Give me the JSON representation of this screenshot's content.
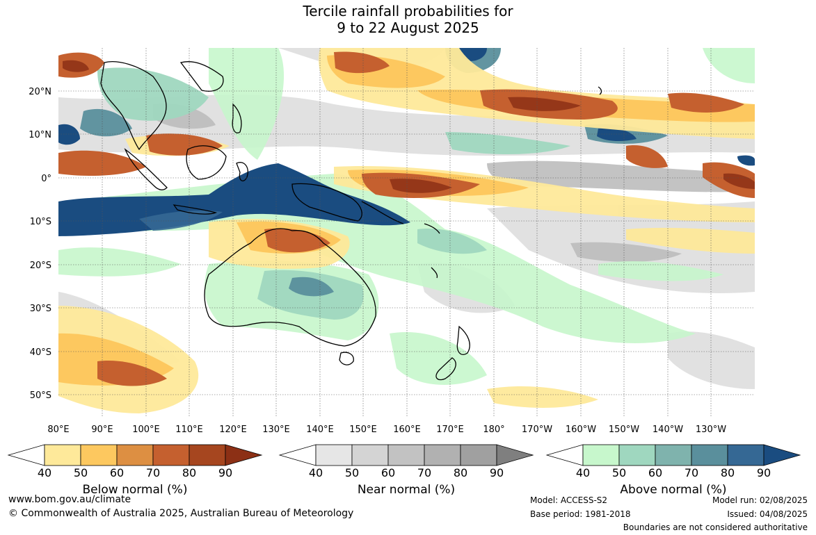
{
  "title": {
    "line1": "Tercile rainfall probabilities for",
    "line2": "9 to 22 August 2025"
  },
  "map": {
    "region": "Australia and surrounding Indian / Pacific Ocean",
    "lon_labels": [
      "80°E",
      "90°E",
      "100°E",
      "110°E",
      "120°E",
      "130°E",
      "140°E",
      "150°E",
      "160°E",
      "170°E",
      "180°",
      "170°W",
      "160°W",
      "150°W",
      "140°W",
      "130°W"
    ],
    "lat_labels": [
      "20°N",
      "10°N",
      "0°",
      "10°S",
      "20°S",
      "30°S",
      "40°S",
      "50°S"
    ]
  },
  "legends": [
    {
      "name": "Below normal (%)",
      "ticks": [
        "40",
        "50",
        "60",
        "70",
        "80",
        "90"
      ],
      "colors": [
        "#ffffff",
        "#fee99a",
        "#fdc85f",
        "#dd8f42",
        "#c5602f",
        "#a6461f",
        "#8c3015"
      ]
    },
    {
      "name": "Near normal (%)",
      "ticks": [
        "40",
        "50",
        "60",
        "70",
        "80",
        "90"
      ],
      "colors": [
        "#ffffff",
        "#e6e6e6",
        "#d4d4d4",
        "#c2c2c2",
        "#b1b1b1",
        "#a0a0a0",
        "#7f7f7f"
      ]
    },
    {
      "name": "Above normal (%)",
      "ticks": [
        "40",
        "50",
        "60",
        "70",
        "80",
        "90"
      ],
      "colors": [
        "#ffffff",
        "#c7f7cc",
        "#9fd7bf",
        "#7fb3ad",
        "#5a8f9c",
        "#356894",
        "#1a4c80"
      ]
    }
  ],
  "footer": {
    "url": "www.bom.gov.au/climate",
    "copyright": "© Commonwealth of Australia 2025, Australian Bureau of Meteorology",
    "model": "Model: ACCESS-S2",
    "base_period": "Base period: 1981-2018",
    "model_run": "Model run: 02/08/2025",
    "issued": "Issued: 04/08/2025",
    "disclaimer": "Boundaries are not considered authoritative"
  }
}
